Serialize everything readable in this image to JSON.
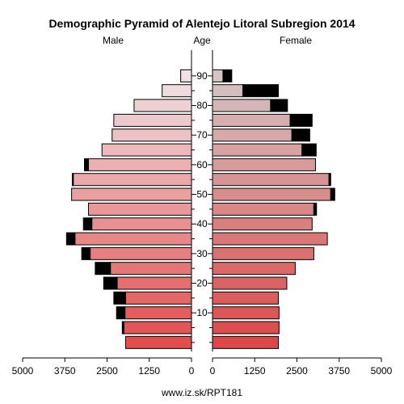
{
  "chart_data": {
    "type": "bar",
    "title": "Demographic Pyramid of Alentejo Litoral Subregion 2014",
    "headers": {
      "left": "Male",
      "center": "Age",
      "right": "Female"
    },
    "x_range": [
      0,
      5000
    ],
    "x_ticks_left": [
      "5000",
      "3750",
      "2500",
      "1250",
      "0"
    ],
    "x_ticks_right": [
      "0",
      "1250",
      "2500",
      "3750",
      "5000"
    ],
    "x_tick_values": [
      5000,
      3750,
      2500,
      1250,
      0
    ],
    "age_groups": [
      "0-4",
      "5-9",
      "10-14",
      "15-19",
      "20-24",
      "25-29",
      "30-34",
      "35-39",
      "40-44",
      "45-49",
      "50-54",
      "55-59",
      "60-64",
      "65-69",
      "70-74",
      "75-79",
      "80-84",
      "85-89",
      "90+"
    ],
    "age_tick_labels": [
      "10",
      "20",
      "30",
      "40",
      "50",
      "60",
      "70",
      "80",
      "90"
    ],
    "age_tick_values": [
      10,
      20,
      30,
      40,
      50,
      60,
      70,
      80,
      90
    ],
    "male": {
      "native": [
        1950,
        2000,
        1970,
        1950,
        2200,
        2400,
        3000,
        3450,
        2950,
        3050,
        3550,
        3500,
        3050,
        2650,
        2350,
        2300,
        1700,
        870,
        320
      ],
      "foreign": [
        0,
        50,
        250,
        350,
        400,
        450,
        250,
        250,
        250,
        0,
        0,
        30,
        120,
        0,
        0,
        0,
        0,
        0,
        0
      ]
    },
    "female": {
      "native": [
        1950,
        1970,
        1970,
        1950,
        2200,
        2450,
        3000,
        3400,
        2950,
        3000,
        3500,
        3450,
        3050,
        2650,
        2350,
        2300,
        1720,
        900,
        310
      ],
      "foreign": [
        0,
        0,
        0,
        0,
        0,
        0,
        0,
        0,
        0,
        80,
        120,
        50,
        0,
        420,
        530,
        650,
        500,
        1050,
        260
      ]
    },
    "colors": {
      "foreign": "#000000",
      "outline": "#000000"
    },
    "legend": "none",
    "grid": false
  },
  "footer": "www.iz.sk/RPT181"
}
